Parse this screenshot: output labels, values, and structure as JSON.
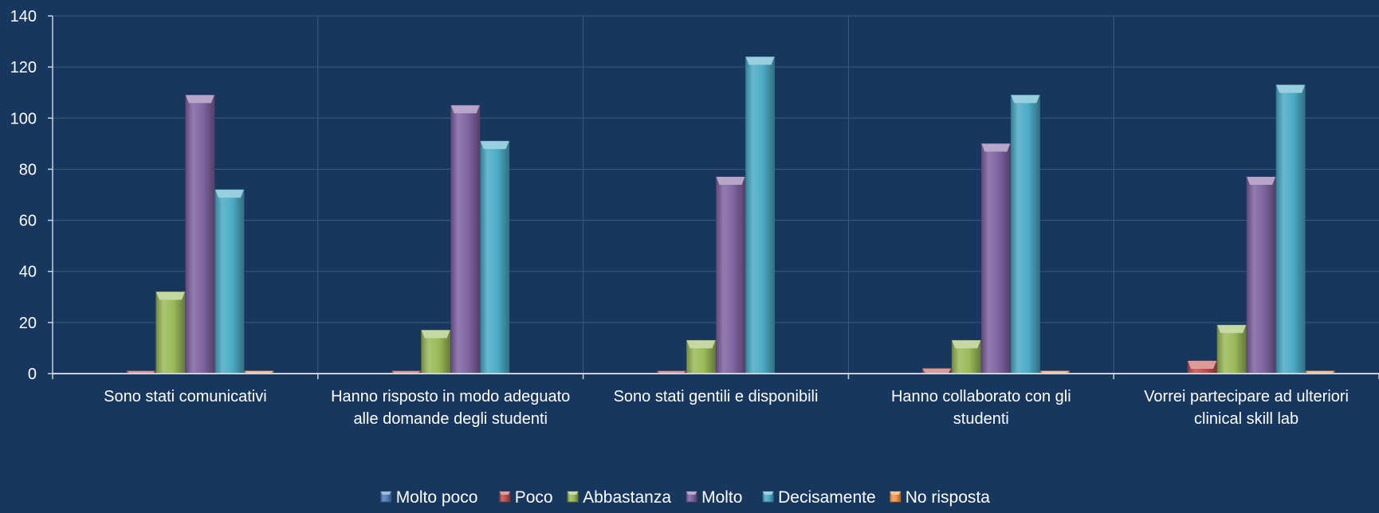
{
  "chart_data": {
    "type": "bar",
    "categories": [
      [
        "Sono stati comunicativi"
      ],
      [
        "Hanno risposto in modo adeguato",
        "alle domande degli studenti"
      ],
      [
        "Sono stati gentili e disponibili"
      ],
      [
        "Hanno collaborato con gli",
        "studenti"
      ],
      [
        "Vorrei partecipare ad ulteriori",
        "clinical skill lab"
      ]
    ],
    "series": [
      {
        "name": "Molto poco",
        "color": "#4f81bd",
        "values": [
          0,
          0,
          0,
          0,
          0
        ]
      },
      {
        "name": "Poco",
        "color": "#c0504d",
        "values": [
          1,
          1,
          1,
          2,
          5
        ]
      },
      {
        "name": "Abbastanza",
        "color": "#9bbb59",
        "values": [
          32,
          17,
          13,
          13,
          19
        ]
      },
      {
        "name": "Molto",
        "color": "#8064a2",
        "values": [
          109,
          105,
          77,
          90,
          77
        ]
      },
      {
        "name": "Decisamente",
        "color": "#4bacc6",
        "values": [
          72,
          91,
          124,
          109,
          113
        ]
      },
      {
        "name": "No risposta",
        "color": "#f79646",
        "values": [
          1,
          0,
          0,
          1,
          1
        ]
      }
    ],
    "ylim": [
      0,
      140
    ],
    "yticks": [
      0,
      20,
      40,
      60,
      80,
      100,
      120,
      140
    ],
    "grid": true,
    "legend_position": "bottom",
    "colors": {
      "background": "#17375e",
      "gridline": "#3d5a80",
      "axis": "#c8d2de"
    }
  }
}
